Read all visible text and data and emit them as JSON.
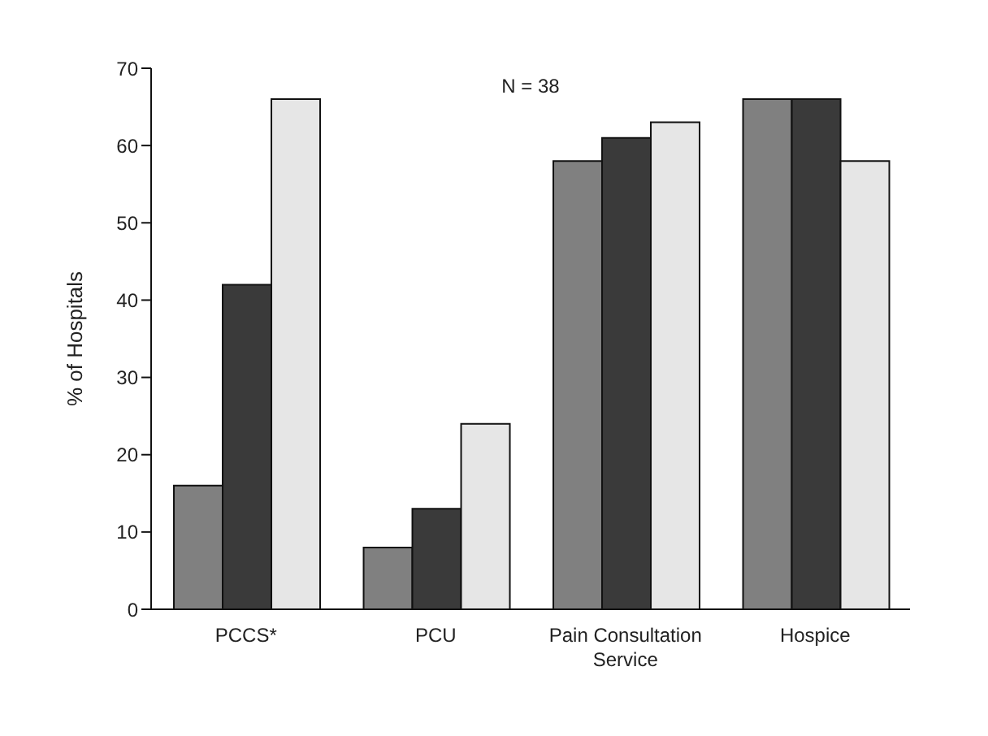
{
  "chart_data": {
    "type": "bar",
    "ylabel": "% of Hospitals",
    "annotations": [
      "N = 38"
    ],
    "categories": [
      "PCCS*",
      "PCU",
      "Pain Consultation Service",
      "Hospice"
    ],
    "series": [
      {
        "color": "#808080",
        "values": [
          16,
          8,
          58,
          66
        ]
      },
      {
        "color": "#3a3a3a",
        "values": [
          42,
          13,
          61,
          66
        ]
      },
      {
        "color": "#e6e6e6",
        "values": [
          66,
          24,
          63,
          58
        ]
      }
    ],
    "ylim": [
      0,
      70
    ],
    "yticks": [
      0,
      10,
      20,
      30,
      40,
      50,
      60,
      70
    ],
    "grid": false,
    "legend": false
  }
}
